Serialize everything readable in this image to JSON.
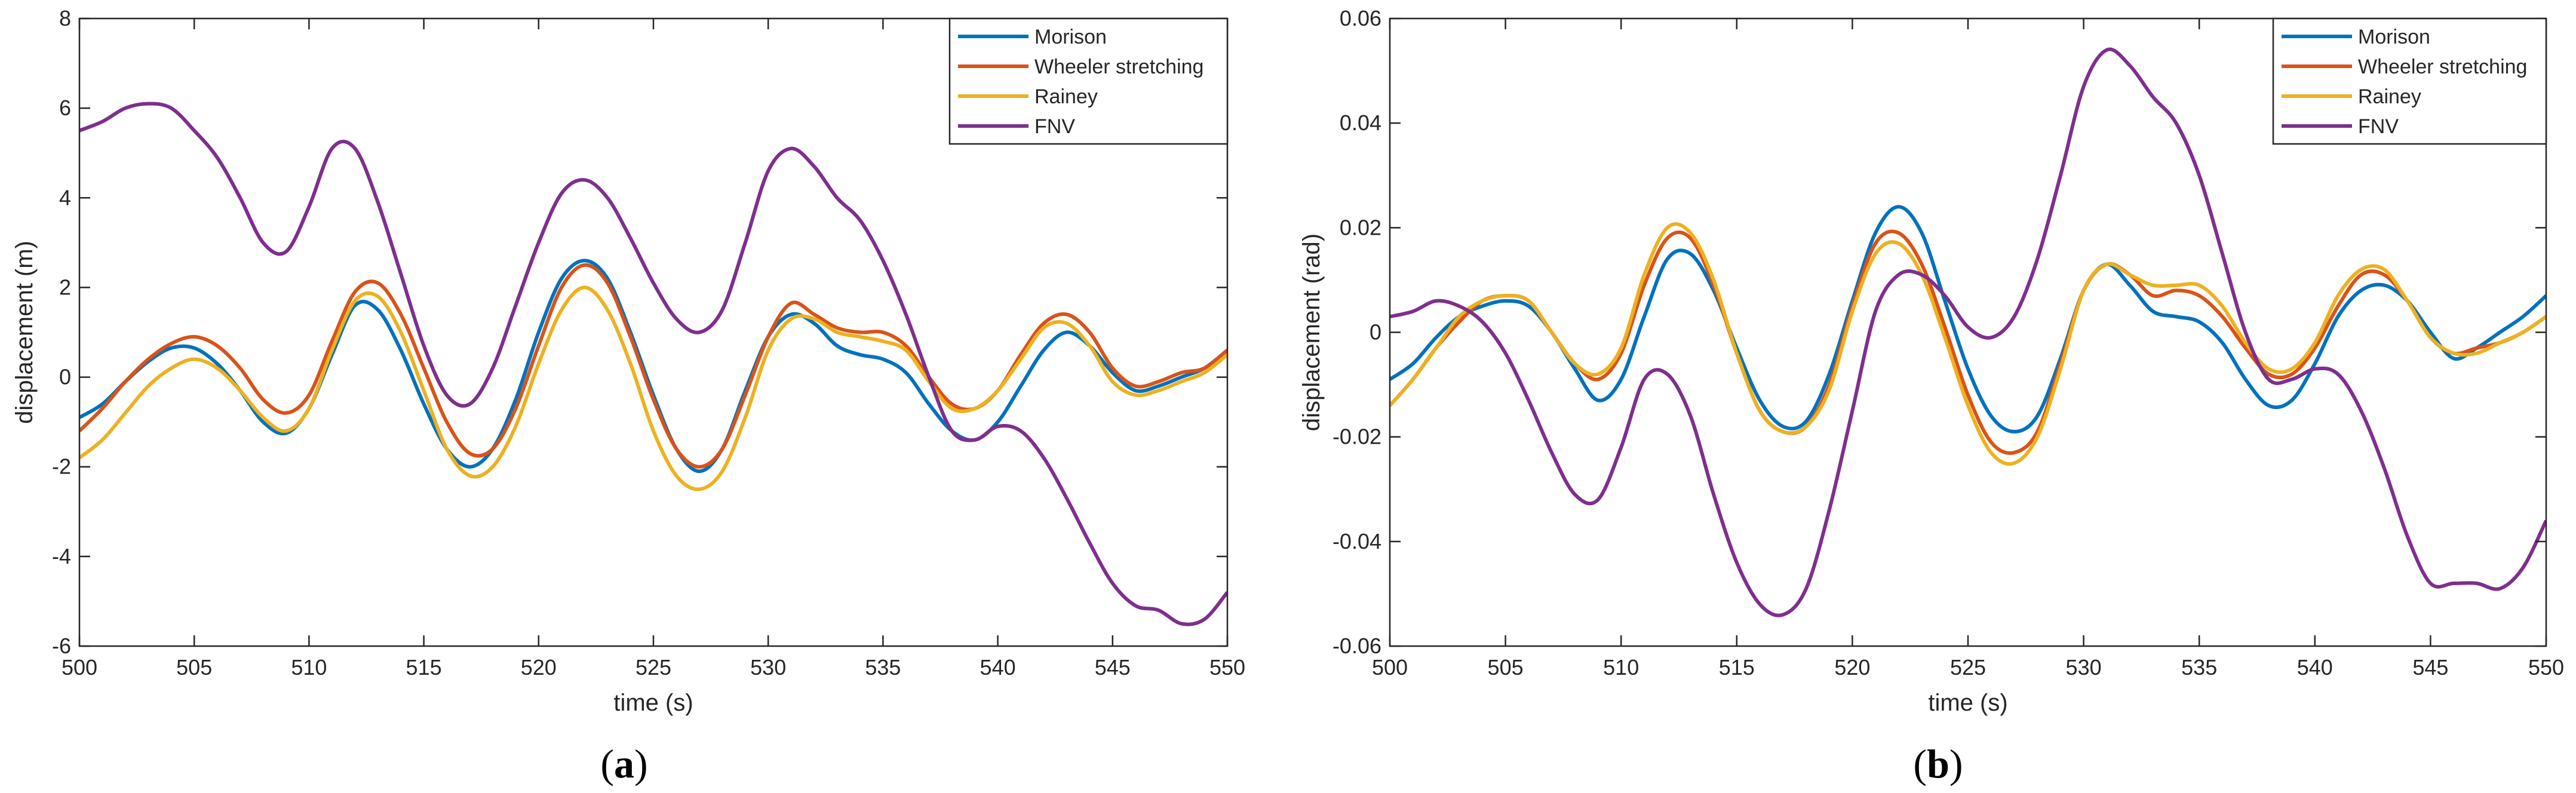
{
  "chart_data": [
    {
      "type": "line",
      "caption_paren_open": "(",
      "caption_letter": "a",
      "caption_paren_close": ")",
      "xlabel": "time (s)",
      "ylabel": "displacement (m)",
      "xlim": [
        500,
        550
      ],
      "ylim": [
        -6,
        8
      ],
      "xticks": [
        "500",
        "505",
        "510",
        "515",
        "520",
        "525",
        "530",
        "535",
        "540",
        "545",
        "550"
      ],
      "yticks": [
        "-6",
        "-4",
        "-2",
        "0",
        "2",
        "4",
        "6",
        "8"
      ],
      "legend_position": "top-right",
      "x": [
        500,
        501,
        502,
        503,
        504,
        505,
        506,
        507,
        508,
        509,
        510,
        511,
        512,
        513,
        514,
        515,
        516,
        517,
        518,
        519,
        520,
        521,
        522,
        523,
        524,
        525,
        526,
        527,
        528,
        529,
        530,
        531,
        532,
        533,
        534,
        535,
        536,
        537,
        538,
        539,
        540,
        541,
        542,
        543,
        544,
        545,
        546,
        547,
        548,
        549,
        550
      ],
      "series": [
        {
          "name": "Morison",
          "color": "#0072BD",
          "values": [
            -0.9,
            -0.6,
            -0.1,
            0.35,
            0.65,
            0.65,
            0.3,
            -0.3,
            -1.0,
            -1.25,
            -0.7,
            0.5,
            1.6,
            1.5,
            0.6,
            -0.6,
            -1.6,
            -2.0,
            -1.6,
            -0.5,
            1.0,
            2.2,
            2.6,
            2.2,
            1.0,
            -0.4,
            -1.6,
            -2.1,
            -1.6,
            -0.3,
            0.9,
            1.4,
            1.2,
            0.7,
            0.5,
            0.4,
            0.1,
            -0.6,
            -1.2,
            -1.4,
            -1.0,
            -0.2,
            0.6,
            1.0,
            0.7,
            0.1,
            -0.3,
            -0.2,
            0.0,
            0.2,
            0.6
          ]
        },
        {
          "name": "Wheeler stretching",
          "color": "#D95319",
          "values": [
            -1.2,
            -0.7,
            -0.1,
            0.4,
            0.75,
            0.9,
            0.7,
            0.2,
            -0.5,
            -0.8,
            -0.4,
            0.8,
            1.9,
            2.1,
            1.4,
            0.2,
            -1.0,
            -1.7,
            -1.6,
            -0.7,
            0.7,
            2.0,
            2.5,
            2.1,
            0.9,
            -0.5,
            -1.6,
            -2.0,
            -1.6,
            -0.4,
            0.9,
            1.65,
            1.4,
            1.1,
            1.0,
            1.0,
            0.7,
            0.0,
            -0.6,
            -0.7,
            -0.3,
            0.5,
            1.2,
            1.4,
            1.0,
            0.2,
            -0.2,
            -0.1,
            0.1,
            0.2,
            0.6
          ]
        },
        {
          "name": "Rainey",
          "color": "#EDB120",
          "values": [
            -1.8,
            -1.4,
            -0.8,
            -0.2,
            0.2,
            0.4,
            0.2,
            -0.3,
            -0.9,
            -1.2,
            -0.7,
            0.6,
            1.7,
            1.8,
            1.0,
            -0.3,
            -1.6,
            -2.2,
            -2.0,
            -1.1,
            0.3,
            1.5,
            2.0,
            1.5,
            0.3,
            -1.2,
            -2.2,
            -2.5,
            -2.1,
            -0.9,
            0.6,
            1.3,
            1.3,
            1.0,
            0.9,
            0.8,
            0.6,
            -0.1,
            -0.7,
            -0.7,
            -0.3,
            0.4,
            1.1,
            1.2,
            0.7,
            -0.1,
            -0.4,
            -0.3,
            -0.1,
            0.1,
            0.5
          ]
        },
        {
          "name": "FNV",
          "color": "#7E2F8E",
          "values": [
            5.5,
            5.7,
            6.0,
            6.1,
            6.0,
            5.5,
            4.9,
            4.0,
            3.0,
            2.8,
            3.8,
            5.1,
            5.1,
            3.9,
            2.3,
            0.7,
            -0.4,
            -0.6,
            0.2,
            1.6,
            3.0,
            4.1,
            4.4,
            4.0,
            3.1,
            2.1,
            1.3,
            1.0,
            1.5,
            3.0,
            4.6,
            5.1,
            4.7,
            4.0,
            3.5,
            2.6,
            1.4,
            0.0,
            -1.2,
            -1.4,
            -1.1,
            -1.2,
            -1.8,
            -2.7,
            -3.7,
            -4.6,
            -5.1,
            -5.2,
            -5.5,
            -5.4,
            -4.8
          ]
        }
      ]
    },
    {
      "type": "line",
      "caption_paren_open": "(",
      "caption_letter": "b",
      "caption_paren_close": ")",
      "xlabel": "time (s)",
      "ylabel": "displacement (rad)",
      "xlim": [
        500,
        550
      ],
      "ylim": [
        -0.06,
        0.06
      ],
      "xticks": [
        "500",
        "505",
        "510",
        "515",
        "520",
        "525",
        "530",
        "535",
        "540",
        "545",
        "550"
      ],
      "yticks": [
        "-0.06",
        "-0.04",
        "-0.02",
        "0",
        "0.02",
        "0.04",
        "0.06"
      ],
      "legend_position": "top-right",
      "x": [
        500,
        501,
        502,
        503,
        504,
        505,
        506,
        507,
        508,
        509,
        510,
        511,
        512,
        513,
        514,
        515,
        516,
        517,
        518,
        519,
        520,
        521,
        522,
        523,
        524,
        525,
        526,
        527,
        528,
        529,
        530,
        531,
        532,
        533,
        534,
        535,
        536,
        537,
        538,
        539,
        540,
        541,
        542,
        543,
        544,
        545,
        546,
        547,
        548,
        549,
        550
      ],
      "series": [
        {
          "name": "Morison",
          "color": "#0072BD",
          "values": [
            -0.009,
            -0.006,
            -0.001,
            0.003,
            0.005,
            0.006,
            0.005,
            0.0,
            -0.007,
            -0.013,
            -0.009,
            0.003,
            0.014,
            0.015,
            0.008,
            -0.003,
            -0.013,
            -0.018,
            -0.017,
            -0.008,
            0.006,
            0.019,
            0.024,
            0.019,
            0.006,
            -0.007,
            -0.016,
            -0.019,
            -0.016,
            -0.005,
            0.008,
            0.013,
            0.009,
            0.004,
            0.003,
            0.002,
            -0.002,
            -0.009,
            -0.014,
            -0.013,
            -0.006,
            0.003,
            0.008,
            0.009,
            0.006,
            0.0,
            -0.005,
            -0.003,
            0.0,
            0.003,
            0.007
          ]
        },
        {
          "name": "Wheeler stretching",
          "color": "#D95319",
          "values": [
            -0.014,
            -0.009,
            -0.003,
            0.002,
            0.006,
            0.007,
            0.006,
            0.0,
            -0.006,
            -0.009,
            -0.004,
            0.009,
            0.018,
            0.018,
            0.009,
            -0.004,
            -0.015,
            -0.019,
            -0.018,
            -0.01,
            0.005,
            0.017,
            0.019,
            0.013,
            0.001,
            -0.012,
            -0.021,
            -0.023,
            -0.019,
            -0.006,
            0.008,
            0.013,
            0.011,
            0.007,
            0.008,
            0.007,
            0.003,
            -0.003,
            -0.008,
            -0.008,
            -0.003,
            0.005,
            0.011,
            0.011,
            0.006,
            -0.001,
            -0.004,
            -0.003,
            -0.002,
            0.0,
            0.003
          ]
        },
        {
          "name": "Rainey",
          "color": "#EDB120",
          "values": [
            -0.014,
            -0.009,
            -0.003,
            0.003,
            0.006,
            0.007,
            0.006,
            0.0,
            -0.006,
            -0.008,
            -0.003,
            0.011,
            0.02,
            0.019,
            0.01,
            -0.004,
            -0.015,
            -0.019,
            -0.018,
            -0.011,
            0.004,
            0.015,
            0.017,
            0.011,
            -0.001,
            -0.014,
            -0.023,
            -0.025,
            -0.02,
            -0.007,
            0.008,
            0.013,
            0.011,
            0.009,
            0.009,
            0.009,
            0.005,
            -0.002,
            -0.007,
            -0.007,
            -0.002,
            0.007,
            0.012,
            0.012,
            0.006,
            -0.001,
            -0.004,
            -0.004,
            -0.002,
            0.0,
            0.003
          ]
        },
        {
          "name": "FNV",
          "color": "#7E2F8E",
          "values": [
            0.003,
            0.004,
            0.006,
            0.005,
            0.002,
            -0.004,
            -0.013,
            -0.023,
            -0.031,
            -0.032,
            -0.022,
            -0.009,
            -0.008,
            -0.016,
            -0.031,
            -0.044,
            -0.052,
            -0.054,
            -0.049,
            -0.034,
            -0.015,
            0.004,
            0.011,
            0.011,
            0.007,
            0.001,
            -0.001,
            0.003,
            0.014,
            0.03,
            0.047,
            0.054,
            0.051,
            0.045,
            0.04,
            0.03,
            0.015,
            0.0,
            -0.009,
            -0.009,
            -0.007,
            -0.008,
            -0.015,
            -0.026,
            -0.039,
            -0.048,
            -0.048,
            -0.048,
            -0.049,
            -0.045,
            -0.036
          ]
        }
      ]
    }
  ]
}
